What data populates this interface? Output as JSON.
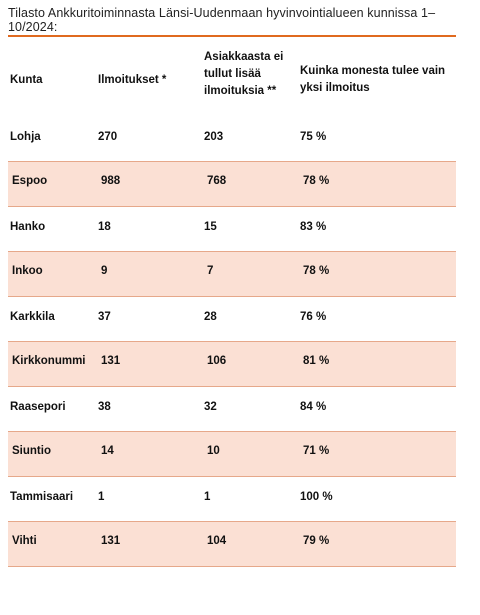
{
  "title": "Tilasto Ankkuritoiminnasta Länsi-Uudenmaan hyvinvointialueen kunnissa 1–10/2024:",
  "headers": [
    "Kunta",
    "Ilmoitukset *",
    "Asiakkaasta ei tullut lisää ilmoituksia **",
    "Kuinka monesta tulee vain yksi ilmoitus"
  ],
  "header_lines": [
    [
      "Kunta"
    ],
    [
      "Ilmoitukset *"
    ],
    [
      "Asiakkaasta ei",
      "tullut lisää",
      "ilmoituksia **"
    ],
    [
      "Kuinka monesta tulee vain",
      "yksi ilmoitus"
    ]
  ],
  "rows": [
    {
      "kunta": "Lohja",
      "ilmoitukset": "270",
      "ei_lisaa": "203",
      "yksi": "75 %",
      "shaded": false
    },
    {
      "kunta": "Espoo",
      "ilmoitukset": "988",
      "ei_lisaa": "768",
      "yksi": "78 %",
      "shaded": true
    },
    {
      "kunta": "Hanko",
      "ilmoitukset": "18",
      "ei_lisaa": "15",
      "yksi": "83 %",
      "shaded": false
    },
    {
      "kunta": "Inkoo",
      "ilmoitukset": "9",
      "ei_lisaa": "7",
      "yksi": "78 %",
      "shaded": true
    },
    {
      "kunta": "Karkkila",
      "ilmoitukset": "37",
      "ei_lisaa": "28",
      "yksi": "76 %",
      "shaded": false
    },
    {
      "kunta": "Kirkkonummi",
      "ilmoitukset": "131",
      "ei_lisaa": "106",
      "yksi": "81 %",
      "shaded": true
    },
    {
      "kunta": "Raasepori",
      "ilmoitukset": "38",
      "ei_lisaa": "32",
      "yksi": "84 %",
      "shaded": false
    },
    {
      "kunta": "Siuntio",
      "ilmoitukset": "14",
      "ei_lisaa": "10",
      "yksi": "71 %",
      "shaded": true
    },
    {
      "kunta": "Tammisaari",
      "ilmoitukset": "1",
      "ei_lisaa": "1",
      "yksi": "100 %",
      "shaded": false
    },
    {
      "kunta": "Vihti",
      "ilmoitukset": "131",
      "ei_lisaa": "104",
      "yksi": "79 %",
      "shaded": true
    }
  ],
  "colors": {
    "accent_line": "#e06a1f",
    "row_shade": "#fbe0d4"
  }
}
